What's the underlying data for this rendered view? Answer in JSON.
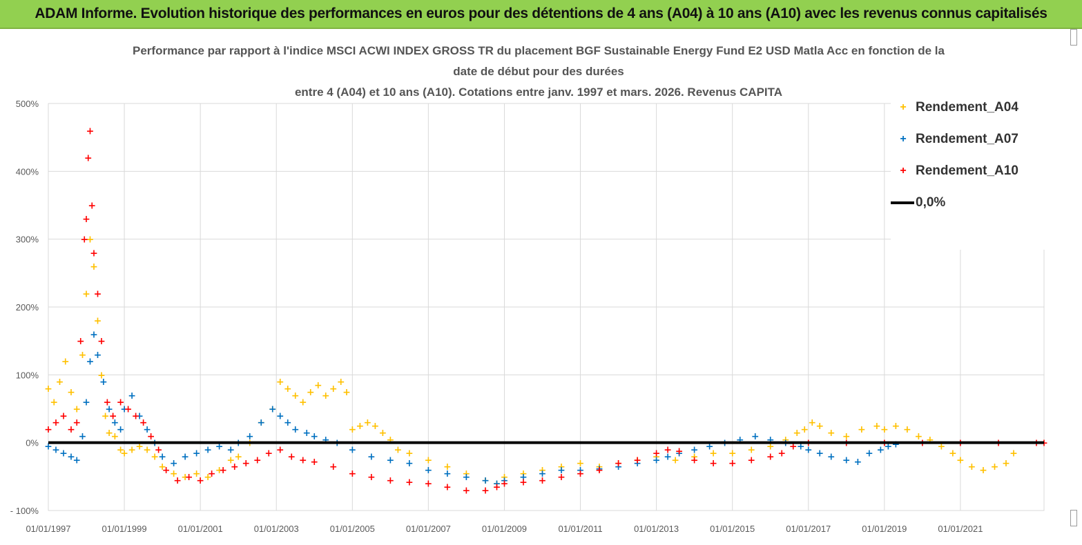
{
  "banner": {
    "title": "ADAM Informe. Evolution historique des performances en euros pour des détentions de 4 ans (A04) à 10 ans (A10) avec les revenus connus capitalisés"
  },
  "colors": {
    "banner_bg": "#92d050",
    "A04": "#ffc000",
    "A07": "#0070c0",
    "A10": "#ff0000",
    "zero_line": "#000000",
    "grid": "#d9d9d9"
  },
  "chart_data": {
    "type": "scatter",
    "title_lines": [
      "Performance par rapport à l'indice MSCI ACWI INDEX GROSS TR  du placement BGF Sustainable Energy Fund E2 USD Matla Acc en fonction de la",
      "date de début pour des durées",
      "entre 4 (A04) et 10 ans (A10). Cotations entre janv. 1997 et mars. 2026. Revenus CAPITA"
    ],
    "xlabel": "",
    "ylabel": "",
    "xlim": [
      1997.0,
      2023.2
    ],
    "ylim": [
      -100,
      500
    ],
    "y_ticks": [
      -100,
      0,
      100,
      200,
      300,
      400,
      500
    ],
    "y_tick_labels": [
      "- 100%",
      "0%",
      "100%",
      "200%",
      "300%",
      "400%",
      "500%"
    ],
    "x_ticks": [
      1997,
      1999,
      2001,
      2003,
      2005,
      2007,
      2009,
      2011,
      2013,
      2015,
      2017,
      2019,
      2021
    ],
    "x_tick_labels": [
      "01/01/1997",
      "01/01/1999",
      "01/01/2001",
      "01/01/2003",
      "01/01/2005",
      "01/01/2007",
      "01/01/2009",
      "01/01/2011",
      "01/01/2013",
      "01/01/2015",
      "01/01/2017",
      "01/01/2019",
      "01/01/2021"
    ],
    "grid": true,
    "legend_position": "right",
    "legend": [
      "Rendement_A04",
      "Rendement_A07",
      "Rendement_A10",
      "0,0%"
    ],
    "series": [
      {
        "name": "Rendement_A04",
        "marker": "+",
        "x": [
          1997.0,
          1997.15,
          1997.3,
          1997.45,
          1997.6,
          1997.75,
          1997.9,
          1998.0,
          1998.1,
          1998.2,
          1998.3,
          1998.4,
          1998.5,
          1998.6,
          1998.75,
          1998.9,
          1999.0,
          1999.2,
          1999.4,
          1999.6,
          1999.8,
          2000.0,
          2000.3,
          2000.6,
          2000.9,
          2001.2,
          2001.5,
          2001.8,
          2002.0,
          2002.3,
          2002.6,
          2002.9,
          2003.1,
          2003.3,
          2003.5,
          2003.7,
          2003.9,
          2004.1,
          2004.3,
          2004.5,
          2004.7,
          2004.85,
          2005.0,
          2005.2,
          2005.4,
          2005.6,
          2005.8,
          2006.0,
          2006.2,
          2006.5,
          2007.0,
          2007.5,
          2008.0,
          2008.5,
          2008.8,
          2009.0,
          2009.5,
          2010.0,
          2010.5,
          2011.0,
          2011.5,
          2012.0,
          2012.5,
          2013.0,
          2013.5,
          2014.0,
          2014.5,
          2015.0,
          2015.5,
          2016.0,
          2016.4,
          2016.7,
          2016.9,
          2017.1,
          2017.3,
          2017.6,
          2018.0,
          2018.4,
          2018.8,
          2019.0,
          2019.3,
          2019.6,
          2019.9,
          2020.2,
          2020.5,
          2020.8,
          2021.0,
          2021.3,
          2021.6,
          2021.9,
          2022.2,
          2022.4
        ],
        "y": [
          80,
          60,
          90,
          120,
          75,
          50,
          130,
          220,
          300,
          260,
          180,
          100,
          40,
          15,
          10,
          -10,
          -15,
          -10,
          -5,
          -10,
          -20,
          -35,
          -45,
          -50,
          -45,
          -50,
          -40,
          -25,
          -20,
          0,
          30,
          50,
          90,
          80,
          70,
          60,
          75,
          85,
          70,
          80,
          90,
          75,
          20,
          25,
          30,
          25,
          15,
          5,
          -10,
          -15,
          -25,
          -35,
          -45,
          -55,
          -60,
          -50,
          -45,
          -40,
          -35,
          -30,
          -35,
          -30,
          -25,
          -20,
          -25,
          -20,
          -15,
          -15,
          -10,
          -5,
          5,
          15,
          20,
          30,
          25,
          15,
          10,
          20,
          25,
          20,
          25,
          20,
          10,
          5,
          -5,
          -15,
          -25,
          -35,
          -40,
          -35,
          -30,
          -15
        ]
      },
      {
        "name": "Rendement_A07",
        "marker": "+",
        "x": [
          1997.0,
          1997.2,
          1997.4,
          1997.6,
          1997.75,
          1997.9,
          1998.0,
          1998.1,
          1998.2,
          1998.3,
          1998.45,
          1998.6,
          1998.75,
          1998.9,
          1999.0,
          1999.2,
          1999.4,
          1999.6,
          1999.8,
          2000.0,
          2000.3,
          2000.6,
          2000.9,
          2001.2,
          2001.5,
          2001.8,
          2002.0,
          2002.3,
          2002.6,
          2002.9,
          2003.1,
          2003.3,
          2003.5,
          2003.8,
          2004.0,
          2004.3,
          2004.6,
          2005.0,
          2005.5,
          2006.0,
          2006.5,
          2007.0,
          2007.5,
          2008.0,
          2008.5,
          2008.8,
          2009.0,
          2009.5,
          2010.0,
          2010.5,
          2011.0,
          2011.5,
          2012.0,
          2012.5,
          2013.0,
          2013.3,
          2013.6,
          2014.0,
          2014.4,
          2014.8,
          2015.2,
          2015.6,
          2016.0,
          2016.4,
          2016.8,
          2017.0,
          2017.3,
          2017.6,
          2018.0,
          2018.3,
          2018.6,
          2018.9,
          2019.1,
          2019.3
        ],
        "y": [
          -5,
          -10,
          -15,
          -20,
          -25,
          10,
          60,
          120,
          160,
          130,
          90,
          50,
          30,
          20,
          50,
          70,
          40,
          20,
          0,
          -20,
          -30,
          -20,
          -15,
          -10,
          -5,
          -10,
          0,
          10,
          30,
          50,
          40,
          30,
          20,
          15,
          10,
          5,
          0,
          -10,
          -20,
          -25,
          -30,
          -40,
          -45,
          -50,
          -55,
          -60,
          -55,
          -50,
          -45,
          -40,
          -40,
          -38,
          -35,
          -30,
          -25,
          -20,
          -15,
          -10,
          -5,
          0,
          5,
          10,
          5,
          0,
          -5,
          -10,
          -15,
          -20,
          -25,
          -28,
          -15,
          -10,
          -5,
          -2
        ]
      },
      {
        "name": "Rendement_A10",
        "marker": "+",
        "x": [
          1997.0,
          1997.2,
          1997.4,
          1997.6,
          1997.75,
          1997.85,
          1997.95,
          1998.0,
          1998.05,
          1998.1,
          1998.15,
          1998.2,
          1998.3,
          1998.4,
          1998.55,
          1998.7,
          1998.9,
          1999.1,
          1999.3,
          1999.5,
          1999.7,
          1999.9,
          2000.1,
          2000.4,
          2000.7,
          2001.0,
          2001.3,
          2001.6,
          2001.9,
          2002.2,
          2002.5,
          2002.8,
          2003.1,
          2003.4,
          2003.7,
          2004.0,
          2004.5,
          2005.0,
          2005.5,
          2006.0,
          2006.5,
          2007.0,
          2007.5,
          2008.0,
          2008.5,
          2008.8,
          2009.0,
          2009.5,
          2010.0,
          2010.5,
          2011.0,
          2011.5,
          2012.0,
          2012.5,
          2013.0,
          2013.3,
          2013.6,
          2014.0,
          2014.5,
          2015.0,
          2015.5,
          2016.0,
          2016.3,
          2016.6,
          2017.0,
          2018.0,
          2019.0,
          2020.0,
          2021.0,
          2022.0,
          2023.0,
          2023.2
        ],
        "y": [
          20,
          30,
          40,
          20,
          30,
          150,
          300,
          330,
          420,
          460,
          350,
          280,
          220,
          150,
          60,
          40,
          60,
          50,
          40,
          30,
          10,
          -10,
          -40,
          -55,
          -50,
          -55,
          -45,
          -40,
          -35,
          -30,
          -25,
          -15,
          -10,
          -20,
          -25,
          -28,
          -35,
          -45,
          -50,
          -55,
          -58,
          -60,
          -65,
          -70,
          -70,
          -65,
          -60,
          -58,
          -55,
          -50,
          -45,
          -40,
          -30,
          -25,
          -15,
          -10,
          -12,
          -25,
          -30,
          -30,
          -25,
          -20,
          -15,
          -5,
          0,
          0,
          0,
          0,
          0,
          0,
          0,
          0
        ]
      },
      {
        "name": "0,0%",
        "type": "line",
        "x": [
          1997.0,
          2023.2
        ],
        "y": [
          0,
          0
        ]
      }
    ]
  }
}
